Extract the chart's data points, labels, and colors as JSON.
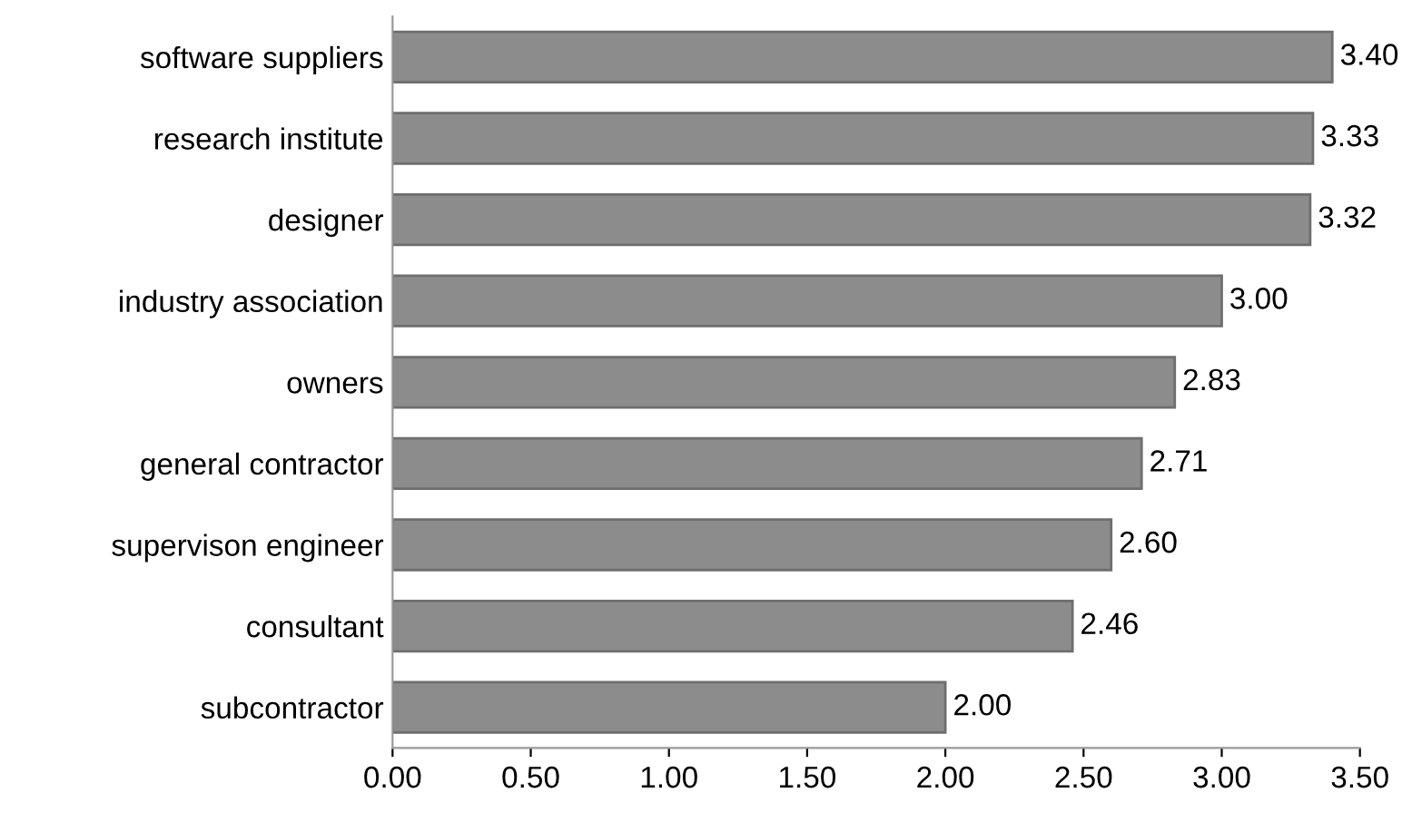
{
  "chart_data": {
    "type": "bar",
    "orientation": "horizontal",
    "categories": [
      "software suppliers",
      "research institute",
      "designer",
      "industry association",
      "owners",
      "general contractor",
      "supervison engineer",
      "consultant",
      "subcontractor"
    ],
    "values": [
      3.4,
      3.33,
      3.32,
      3.0,
      2.83,
      2.71,
      2.6,
      2.46,
      2.0
    ],
    "value_labels": [
      "3.40",
      "3.33",
      "3.32",
      "3.00",
      "2.83",
      "2.71",
      "2.60",
      "2.46",
      "2.00"
    ],
    "color": "#8c8c8c",
    "xlim": [
      0,
      3.5
    ],
    "xticks": [
      {
        "value": 0,
        "label": "0.00"
      },
      {
        "value": 0.5,
        "label": "0.50"
      },
      {
        "value": 1,
        "label": "1.00"
      },
      {
        "value": 1.5,
        "label": "1.50"
      },
      {
        "value": 2,
        "label": "2.00"
      },
      {
        "value": 2.5,
        "label": "2.50"
      },
      {
        "value": 3,
        "label": "3.00"
      },
      {
        "value": 3.5,
        "label": "3.50"
      }
    ],
    "grid": false,
    "legend": false
  }
}
